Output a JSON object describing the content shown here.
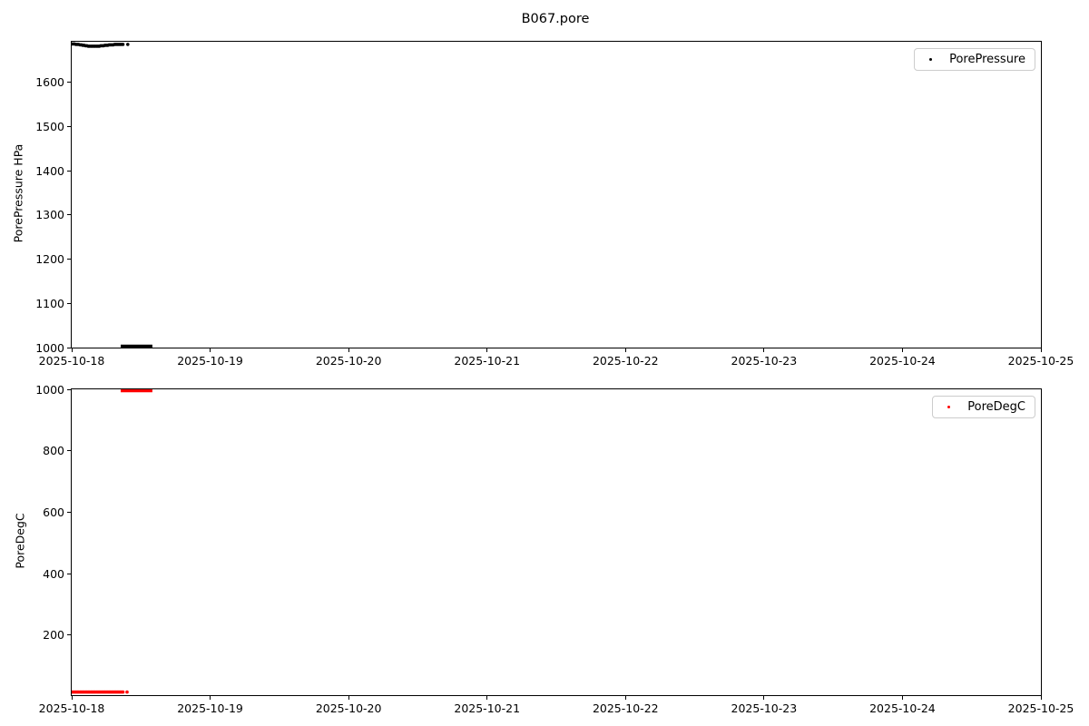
{
  "figure": {
    "title": "B067.pore",
    "background_color": "#ffffff"
  },
  "chart_data": [
    {
      "id": "pore-pressure",
      "type": "scatter",
      "title": "B067.pore",
      "xlabel": "",
      "ylabel": "PorePressure HPa",
      "legend": {
        "label": "PorePressure",
        "marker_color": "#000000",
        "position": "upper right"
      },
      "grid": false,
      "x_range_days": [
        0,
        7
      ],
      "x_tick_labels": [
        "2025-10-18",
        "2025-10-19",
        "2025-10-20",
        "2025-10-21",
        "2025-10-22",
        "2025-10-23",
        "2025-10-24",
        "2025-10-25"
      ],
      "ylim": [
        1000,
        1692
      ],
      "yticks": [
        1000,
        1100,
        1200,
        1300,
        1400,
        1500,
        1600
      ],
      "series": [
        {
          "name": "PorePressure",
          "color": "#000000",
          "marker_px": 1.8,
          "points": [
            [
              0.0,
              1687
            ],
            [
              0.01,
              1687
            ],
            [
              0.02,
              1687
            ],
            [
              0.03,
              1686
            ],
            [
              0.04,
              1686
            ],
            [
              0.05,
              1686
            ],
            [
              0.06,
              1685
            ],
            [
              0.07,
              1685
            ],
            [
              0.08,
              1684
            ],
            [
              0.09,
              1684
            ],
            [
              0.1,
              1683
            ],
            [
              0.11,
              1683
            ],
            [
              0.12,
              1682
            ],
            [
              0.13,
              1682
            ],
            [
              0.14,
              1682
            ],
            [
              0.15,
              1682
            ],
            [
              0.16,
              1682
            ],
            [
              0.17,
              1682
            ],
            [
              0.18,
              1682
            ],
            [
              0.19,
              1682
            ],
            [
              0.2,
              1682
            ],
            [
              0.21,
              1683
            ],
            [
              0.22,
              1683
            ],
            [
              0.23,
              1683
            ],
            [
              0.24,
              1684
            ],
            [
              0.25,
              1684
            ],
            [
              0.26,
              1684
            ],
            [
              0.27,
              1685
            ],
            [
              0.28,
              1685
            ],
            [
              0.29,
              1685
            ],
            [
              0.3,
              1685
            ],
            [
              0.31,
              1686
            ],
            [
              0.32,
              1686
            ],
            [
              0.33,
              1686
            ],
            [
              0.34,
              1686
            ],
            [
              0.35,
              1686
            ],
            [
              0.36,
              1686
            ],
            [
              0.37,
              1686
            ],
            [
              0.405,
              1686
            ]
          ],
          "offscale_segments": [
            {
              "t_start": 0.354,
              "t_end": 0.583,
              "value": 1000,
              "clipped_at": "ylim_min"
            }
          ]
        }
      ]
    },
    {
      "id": "pore-temperature",
      "type": "scatter",
      "title": "",
      "xlabel": "",
      "ylabel": "PoreDegC",
      "legend": {
        "label": "PoreDegC",
        "marker_color": "#ff0000",
        "position": "upper right"
      },
      "grid": false,
      "x_range_days": [
        0,
        7
      ],
      "x_tick_labels": [
        "2025-10-18",
        "2025-10-19",
        "2025-10-20",
        "2025-10-21",
        "2025-10-22",
        "2025-10-23",
        "2025-10-24",
        "2025-10-25"
      ],
      "ylim": [
        5,
        1000
      ],
      "yticks": [
        200,
        400,
        600,
        800,
        1000
      ],
      "series": [
        {
          "name": "PoreDegC",
          "color": "#ff0000",
          "marker_px": 1.8,
          "points": [
            [
              0.0,
              15
            ],
            [
              0.01,
              15
            ],
            [
              0.02,
              15
            ],
            [
              0.03,
              15
            ],
            [
              0.04,
              15
            ],
            [
              0.05,
              15
            ],
            [
              0.06,
              15
            ],
            [
              0.07,
              15
            ],
            [
              0.08,
              15
            ],
            [
              0.09,
              15
            ],
            [
              0.1,
              15
            ],
            [
              0.11,
              15
            ],
            [
              0.12,
              15
            ],
            [
              0.13,
              15
            ],
            [
              0.14,
              15
            ],
            [
              0.15,
              15
            ],
            [
              0.16,
              15
            ],
            [
              0.17,
              15
            ],
            [
              0.18,
              15
            ],
            [
              0.19,
              15
            ],
            [
              0.2,
              15
            ],
            [
              0.21,
              15
            ],
            [
              0.22,
              15
            ],
            [
              0.23,
              15
            ],
            [
              0.24,
              15
            ],
            [
              0.25,
              15
            ],
            [
              0.26,
              15
            ],
            [
              0.27,
              15
            ],
            [
              0.28,
              15
            ],
            [
              0.29,
              15
            ],
            [
              0.3,
              15
            ],
            [
              0.31,
              15
            ],
            [
              0.32,
              15
            ],
            [
              0.33,
              15
            ],
            [
              0.34,
              15
            ],
            [
              0.35,
              15
            ],
            [
              0.36,
              15
            ],
            [
              0.37,
              15
            ],
            [
              0.4,
              15
            ]
          ],
          "offscale_segments": [
            {
              "t_start": 0.354,
              "t_end": 0.583,
              "value": 1000,
              "clipped_at": "ylim_max"
            }
          ]
        }
      ]
    }
  ]
}
